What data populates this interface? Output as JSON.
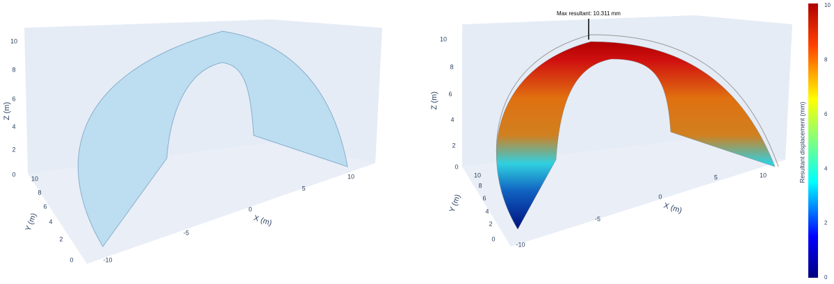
{
  "scenes": [
    {
      "x_axis": {
        "title": "X (m)",
        "ticks": [
          "-10",
          "-5",
          "0",
          "5",
          "10"
        ]
      },
      "y_axis": {
        "title": "Y (m)",
        "ticks": [
          "0",
          "2",
          "4",
          "6",
          "8",
          "10"
        ]
      },
      "z_axis": {
        "title": "Z (m)",
        "ticks": [
          "0",
          "2",
          "4",
          "6",
          "8",
          "10"
        ]
      }
    },
    {
      "x_axis": {
        "title": "X (m)",
        "ticks": [
          "-10",
          "-5",
          "0",
          "5",
          "10"
        ]
      },
      "y_axis": {
        "title": "Y (m)",
        "ticks": [
          "0",
          "2",
          "4",
          "6",
          "8",
          "10"
        ]
      },
      "z_axis": {
        "title": "Z (m)",
        "ticks": [
          "0",
          "2",
          "4",
          "6",
          "8",
          "10"
        ]
      },
      "annotation": "Max resultant: 10.311 mm"
    }
  ],
  "colorbar": {
    "title": "Resultant displacement (mm)",
    "ticks": [
      "0",
      "2",
      "4",
      "6",
      "8",
      "10"
    ]
  }
}
